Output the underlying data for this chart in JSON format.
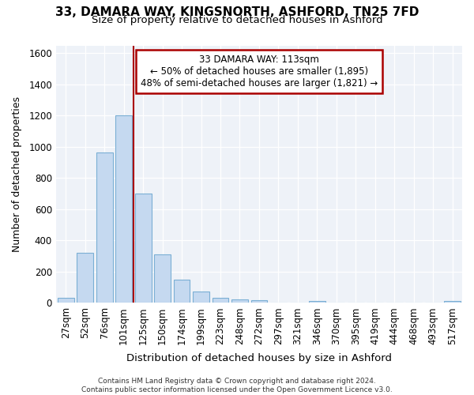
{
  "title_line1": "33, DAMARA WAY, KINGSNORTH, ASHFORD, TN25 7FD",
  "title_line2": "Size of property relative to detached houses in Ashford",
  "xlabel": "Distribution of detached houses by size in Ashford",
  "ylabel": "Number of detached properties",
  "bar_color": "#c5d9f0",
  "bar_edge_color": "#7bafd4",
  "bar_values": [
    30,
    320,
    965,
    1200,
    700,
    310,
    150,
    75,
    30,
    20,
    15,
    0,
    0,
    10,
    0,
    0,
    0,
    0,
    0,
    0,
    10
  ],
  "bar_labels": [
    "27sqm",
    "52sqm",
    "76sqm",
    "101sqm",
    "125sqm",
    "150sqm",
    "174sqm",
    "199sqm",
    "223sqm",
    "248sqm",
    "272sqm",
    "297sqm",
    "321sqm",
    "346sqm",
    "370sqm",
    "395sqm",
    "419sqm",
    "444sqm",
    "468sqm",
    "493sqm",
    "517sqm"
  ],
  "ylim": [
    0,
    1650
  ],
  "yticks": [
    0,
    200,
    400,
    600,
    800,
    1000,
    1200,
    1400,
    1600
  ],
  "vline_x": 3.5,
  "vline_color": "#aa0000",
  "annotation_text_line1": "33 DAMARA WAY: 113sqm",
  "annotation_text_line2": "← 50% of detached houses are smaller (1,895)",
  "annotation_text_line3": "48% of semi-detached houses are larger (1,821) →",
  "annotation_box_facecolor": "#ffffff",
  "annotation_box_edgecolor": "#aa0000",
  "ax_facecolor": "#eef2f8",
  "fig_facecolor": "#ffffff",
  "grid_color": "#ffffff",
  "footer_line1": "Contains HM Land Registry data © Crown copyright and database right 2024.",
  "footer_line2": "Contains public sector information licensed under the Open Government Licence v3.0."
}
